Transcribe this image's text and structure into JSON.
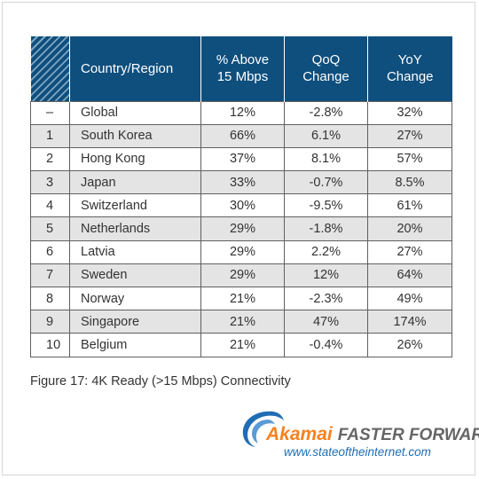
{
  "table": {
    "headers": {
      "country": "Country/Region",
      "above_line1": "% Above",
      "above_line2": "15 Mbps",
      "qoq_line1": "QoQ",
      "qoq_line2": "Change",
      "yoy_line1": "YoY",
      "yoy_line2": "Change"
    },
    "rows": [
      {
        "rank": "–",
        "country": "Global",
        "above": "12%",
        "qoq": "-2.8%",
        "yoy": "32%"
      },
      {
        "rank": "1",
        "country": "South Korea",
        "above": "66%",
        "qoq": "6.1%",
        "yoy": "27%"
      },
      {
        "rank": "2",
        "country": "Hong Kong",
        "above": "37%",
        "qoq": "8.1%",
        "yoy": "57%"
      },
      {
        "rank": "3",
        "country": "Japan",
        "above": "33%",
        "qoq": "-0.7%",
        "yoy": "8.5%"
      },
      {
        "rank": "4",
        "country": "Switzerland",
        "above": "30%",
        "qoq": "-9.5%",
        "yoy": "61%"
      },
      {
        "rank": "5",
        "country": "Netherlands",
        "above": "29%",
        "qoq": "-1.8%",
        "yoy": "20%"
      },
      {
        "rank": "6",
        "country": "Latvia",
        "above": "29%",
        "qoq": "2.2%",
        "yoy": "27%"
      },
      {
        "rank": "7",
        "country": "Sweden",
        "above": "29%",
        "qoq": "12%",
        "yoy": "64%"
      },
      {
        "rank": "8",
        "country": "Norway",
        "above": "21%",
        "qoq": "-2.3%",
        "yoy": "49%"
      },
      {
        "rank": "9",
        "country": "Singapore",
        "above": "21%",
        "qoq": "47%",
        "yoy": "174%"
      },
      {
        "rank": "10",
        "country": "Belgium",
        "above": "21%",
        "qoq": "-0.4%",
        "yoy": "26%"
      }
    ]
  },
  "caption": "Figure 17: 4K Ready (>15 Mbps) Connectivity",
  "logo": {
    "brand": "Akamai",
    "tagline": "FASTER FORWARD",
    "url": "www.stateoftheinternet.com"
  },
  "colors": {
    "header_bg": "#0f4f7d",
    "shaded_row": "#e4e4e4",
    "brand_orange": "#f58220",
    "url_blue": "#1f6db4"
  },
  "icons": {
    "logo_mark": "akamai-swoosh-icon"
  }
}
